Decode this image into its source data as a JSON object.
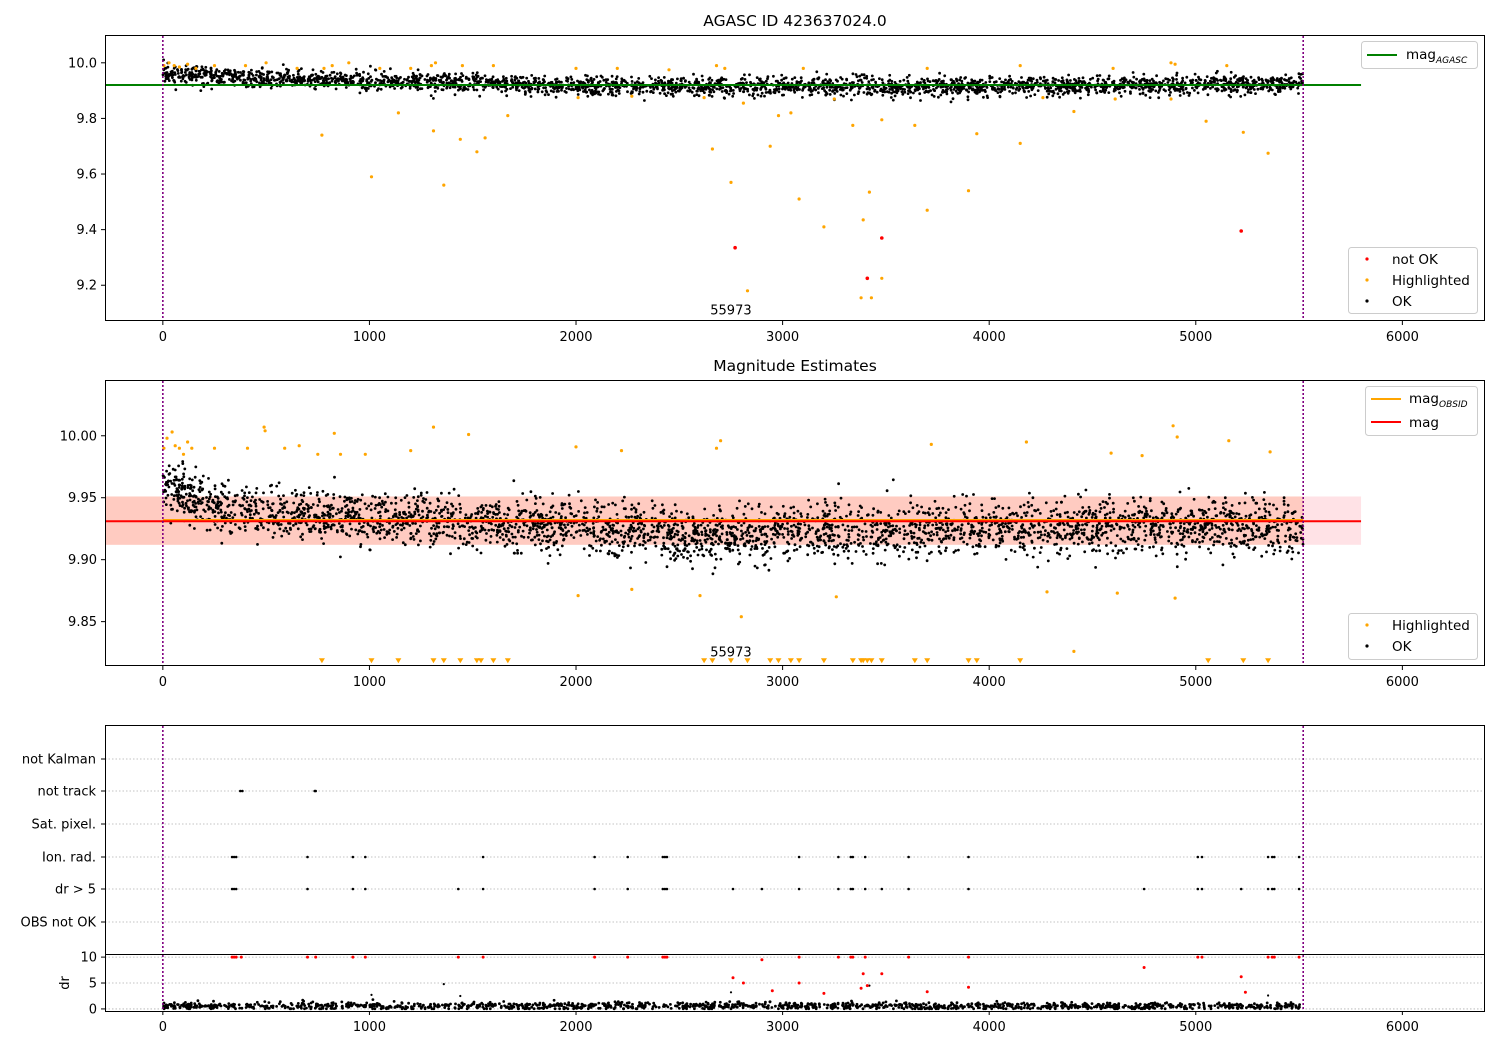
{
  "chart_data": [
    {
      "type": "scatter",
      "title": "AGASC ID 423637024.0",
      "xlim": [
        -280,
        6400
      ],
      "ylim": [
        9.075,
        10.1
      ],
      "x_ticks": [
        0,
        1000,
        2000,
        3000,
        4000,
        5000,
        6000
      ],
      "y_ticks": [
        9.2,
        9.4,
        9.6,
        9.8,
        10.0
      ],
      "y_tick_labels": [
        "9.2",
        "9.4",
        "9.6",
        "9.8",
        "10.0"
      ],
      "vlines": [
        0,
        5520
      ],
      "hline": {
        "y": 9.92,
        "x_end": 5800,
        "color": "#008000"
      },
      "annotation": {
        "text": "55973",
        "x": 2750,
        "y": 9.095
      },
      "legend_top": [
        {
          "label": "mag",
          "sub": "AGASC",
          "color": "#008000"
        }
      ],
      "legend_bottom": [
        {
          "label": "not OK",
          "color": "#ff0000"
        },
        {
          "label": "Highlighted",
          "color": "#ffa500"
        },
        {
          "label": "OK",
          "color": "#000000"
        }
      ],
      "series": [
        {
          "name": "OK",
          "color": "#000000",
          "x_range": [
            0,
            5520
          ],
          "n": 2800,
          "band_segments": [
            [
              0,
              9.965
            ],
            [
              400,
              9.945
            ],
            [
              1000,
              9.935
            ],
            [
              2000,
              9.915
            ],
            [
              3000,
              9.915
            ],
            [
              4000,
              9.915
            ],
            [
              5000,
              9.92
            ],
            [
              5520,
              9.925
            ]
          ],
          "spread": 0.028
        },
        {
          "name": "Highlighted",
          "color": "#ffa500",
          "points": [
            [
              5,
              9.99
            ],
            [
              30,
              10.0
            ],
            [
              55,
              9.99
            ],
            [
              80,
              9.985
            ],
            [
              120,
              9.995
            ],
            [
              160,
              9.98
            ],
            [
              250,
              9.99
            ],
            [
              400,
              9.99
            ],
            [
              500,
              10.0
            ],
            [
              650,
              9.98
            ],
            [
              780,
              9.98
            ],
            [
              820,
              9.99
            ],
            [
              900,
              10.0
            ],
            [
              1050,
              9.98
            ],
            [
              1200,
              9.98
            ],
            [
              1300,
              9.99
            ],
            [
              1320,
              10.0
            ],
            [
              1450,
              9.99
            ],
            [
              1600,
              9.99
            ],
            [
              2000,
              9.98
            ],
            [
              2200,
              9.98
            ],
            [
              2450,
              9.975
            ],
            [
              2680,
              9.99
            ],
            [
              2720,
              9.98
            ],
            [
              3100,
              9.98
            ],
            [
              3700,
              9.98
            ],
            [
              4150,
              9.99
            ],
            [
              4600,
              9.98
            ],
            [
              4880,
              10.0
            ],
            [
              4900,
              9.995
            ],
            [
              5150,
              9.99
            ],
            [
              770,
              9.74
            ],
            [
              1010,
              9.59
            ],
            [
              1140,
              9.82
            ],
            [
              1310,
              9.755
            ],
            [
              1360,
              9.56
            ],
            [
              1440,
              9.725
            ],
            [
              1520,
              9.68
            ],
            [
              1560,
              9.73
            ],
            [
              1670,
              9.81
            ],
            [
              2010,
              9.875
            ],
            [
              2270,
              9.88
            ],
            [
              2620,
              9.875
            ],
            [
              2660,
              9.69
            ],
            [
              2750,
              9.57
            ],
            [
              2810,
              9.855
            ],
            [
              2830,
              9.18
            ],
            [
              2940,
              9.7
            ],
            [
              2980,
              9.81
            ],
            [
              3040,
              9.82
            ],
            [
              3080,
              9.51
            ],
            [
              3200,
              9.41
            ],
            [
              3250,
              9.87
            ],
            [
              3340,
              9.775
            ],
            [
              3380,
              9.155
            ],
            [
              3390,
              9.435
            ],
            [
              3420,
              9.535
            ],
            [
              3430,
              9.155
            ],
            [
              3480,
              9.225
            ],
            [
              3480,
              9.795
            ],
            [
              3640,
              9.775
            ],
            [
              3700,
              9.47
            ],
            [
              3900,
              9.54
            ],
            [
              3940,
              9.745
            ],
            [
              4150,
              9.71
            ],
            [
              4260,
              9.875
            ],
            [
              4410,
              9.825
            ],
            [
              4610,
              9.87
            ],
            [
              4880,
              9.87
            ],
            [
              5050,
              9.79
            ],
            [
              5230,
              9.75
            ],
            [
              5350,
              9.675
            ]
          ]
        },
        {
          "name": "not OK",
          "color": "#ff0000",
          "points": [
            [
              2770,
              9.335
            ],
            [
              3410,
              9.225
            ],
            [
              3480,
              9.37
            ],
            [
              5220,
              9.395
            ]
          ]
        }
      ]
    },
    {
      "type": "scatter",
      "title": "Magnitude Estimates",
      "xlim": [
        -280,
        6400
      ],
      "ylim": [
        9.815,
        10.045
      ],
      "x_ticks": [
        0,
        1000,
        2000,
        3000,
        4000,
        5000,
        6000
      ],
      "y_ticks": [
        9.85,
        9.9,
        9.95,
        10.0
      ],
      "y_tick_labels": [
        "9.85",
        "9.90",
        "9.95",
        "10.00"
      ],
      "vlines": [
        0,
        5520
      ],
      "band_obsid": {
        "x_end": 5520,
        "y_low": 9.912,
        "y_high": 9.951,
        "color": "#ffa07a"
      },
      "band_mag": {
        "x_end": 5800,
        "y_low": 9.912,
        "y_high": 9.951,
        "color": "#ffb6c1"
      },
      "hline": {
        "y": 9.931,
        "x_end": 5800,
        "color": "#ff0000"
      },
      "hline_obsid": {
        "y": 9.932,
        "x_end": 5520,
        "color": "#ffa500"
      },
      "annotation": {
        "text": "55973",
        "x": 2750,
        "y": 9.822
      },
      "legend_top": [
        {
          "label": "mag",
          "sub": "OBSID",
          "color": "#ffa500"
        },
        {
          "label": "mag",
          "sub": "",
          "color": "#ff0000"
        }
      ],
      "legend_bottom": [
        {
          "label": "Highlighted",
          "color": "#ffa500"
        },
        {
          "label": "OK",
          "color": "#000000"
        }
      ],
      "series": [
        {
          "name": "OK",
          "color": "#000000",
          "x_range": [
            0,
            5520
          ],
          "n": 3200,
          "band_segments": [
            [
              0,
              9.96
            ],
            [
              300,
              9.94
            ],
            [
              1000,
              9.935
            ],
            [
              2000,
              9.925
            ],
            [
              2600,
              9.918
            ],
            [
              3000,
              9.922
            ],
            [
              4000,
              9.925
            ],
            [
              5000,
              9.928
            ],
            [
              5520,
              9.925
            ]
          ],
          "spread": 0.018
        },
        {
          "name": "Highlighted",
          "color": "#ffa500",
          "points": [
            [
              5,
              9.99
            ],
            [
              20,
              9.998
            ],
            [
              45,
              10.003
            ],
            [
              60,
              9.992
            ],
            [
              80,
              9.99
            ],
            [
              100,
              9.985
            ],
            [
              120,
              9.995
            ],
            [
              140,
              9.99
            ],
            [
              250,
              9.99
            ],
            [
              410,
              9.99
            ],
            [
              490,
              10.007
            ],
            [
              495,
              10.004
            ],
            [
              590,
              9.99
            ],
            [
              660,
              9.992
            ],
            [
              750,
              9.985
            ],
            [
              830,
              10.002
            ],
            [
              860,
              9.985
            ],
            [
              980,
              9.985
            ],
            [
              1200,
              9.988
            ],
            [
              1310,
              10.007
            ],
            [
              1480,
              10.001
            ],
            [
              2000,
              9.991
            ],
            [
              2010,
              9.871
            ],
            [
              2220,
              9.988
            ],
            [
              2270,
              9.876
            ],
            [
              2600,
              9.871
            ],
            [
              2680,
              9.99
            ],
            [
              2700,
              9.996
            ],
            [
              2800,
              9.854
            ],
            [
              3260,
              9.87
            ],
            [
              3720,
              9.993
            ],
            [
              4180,
              9.995
            ],
            [
              4280,
              9.874
            ],
            [
              4410,
              9.826
            ],
            [
              4590,
              9.986
            ],
            [
              4620,
              9.873
            ],
            [
              4740,
              9.984
            ],
            [
              4890,
              10.008
            ],
            [
              4900,
              9.869
            ],
            [
              4910,
              9.999
            ],
            [
              5160,
              9.996
            ],
            [
              5360,
              9.987
            ]
          ]
        },
        {
          "name": "Highlighted-low",
          "color": "#ffa500",
          "marker": "triangle-down",
          "y": 9.818,
          "x": [
            770,
            1010,
            1140,
            1310,
            1360,
            1440,
            1520,
            1540,
            1600,
            1670,
            2620,
            2660,
            2750,
            2830,
            2940,
            2980,
            3040,
            3080,
            3200,
            3340,
            3380,
            3390,
            3410,
            3430,
            3480,
            3640,
            3700,
            3900,
            3940,
            4150,
            5060,
            5230,
            5350
          ]
        }
      ]
    },
    {
      "type": "scatter",
      "title": "",
      "xlim": [
        -280,
        6400
      ],
      "categories": [
        "not Kalman",
        "not track",
        "Sat. pixel.",
        "Ion. rad.",
        "dr > 5",
        "OBS not OK"
      ],
      "flag_points": {
        "not track": [
          375,
          385,
          735,
          740
        ],
        "Ion. rad.": [
          335,
          345,
          355,
          700,
          920,
          980,
          1550,
          2090,
          2250,
          2420,
          2430,
          2440,
          3080,
          3270,
          3330,
          3340,
          3400,
          3610,
          3900,
          5010,
          5030,
          5350,
          5370,
          5380,
          5500
        ],
        "dr > 5": [
          335,
          345,
          355,
          700,
          920,
          980,
          1430,
          1550,
          2090,
          2250,
          2420,
          2430,
          2440,
          2760,
          2900,
          3080,
          3270,
          3330,
          3340,
          3400,
          3480,
          3610,
          3900,
          4750,
          5010,
          5030,
          5220,
          5350,
          5370,
          5380,
          5500
        ]
      },
      "vlines": [
        0,
        5520
      ]
    },
    {
      "type": "scatter",
      "title": "",
      "ylabel": "dr",
      "xlim": [
        -280,
        6400
      ],
      "ylim": [
        -0.4,
        10.6
      ],
      "x_ticks": [
        0,
        1000,
        2000,
        3000,
        4000,
        5000,
        6000
      ],
      "y_ticks": [
        0,
        5,
        10
      ],
      "vlines": [
        0,
        5520
      ],
      "series": [
        {
          "name": "dr-ok",
          "color": "#000000",
          "x_range": [
            0,
            5520
          ],
          "n": 1400,
          "mean": 0.55,
          "spread": 0.35
        },
        {
          "name": "dr-bad",
          "color": "#ff0000",
          "points": [
            [
              335,
              10
            ],
            [
              345,
              10
            ],
            [
              355,
              10
            ],
            [
              380,
              10
            ],
            [
              700,
              10
            ],
            [
              740,
              10
            ],
            [
              920,
              10
            ],
            [
              980,
              10
            ],
            [
              1430,
              10
            ],
            [
              1550,
              10
            ],
            [
              2090,
              10
            ],
            [
              2250,
              10
            ],
            [
              2420,
              10
            ],
            [
              2430,
              10
            ],
            [
              2440,
              10
            ],
            [
              3080,
              10
            ],
            [
              3270,
              10
            ],
            [
              3330,
              10
            ],
            [
              3340,
              10
            ],
            [
              3400,
              10
            ],
            [
              3610,
              10
            ],
            [
              3900,
              10
            ],
            [
              5010,
              10
            ],
            [
              5030,
              10
            ],
            [
              5350,
              10
            ],
            [
              5370,
              10
            ],
            [
              5380,
              10
            ],
            [
              5500,
              10
            ],
            [
              2760,
              6
            ],
            [
              2810,
              5
            ],
            [
              2900,
              9.5
            ],
            [
              2950,
              3.5
            ],
            [
              3080,
              5
            ],
            [
              3200,
              3
            ],
            [
              3380,
              4
            ],
            [
              3390,
              6.8
            ],
            [
              3410,
              4.5
            ],
            [
              3480,
              6.8
            ],
            [
              3700,
              3.3
            ],
            [
              3900,
              4.2
            ],
            [
              4750,
              8
            ],
            [
              5220,
              6.2
            ],
            [
              5240,
              3.2
            ]
          ]
        },
        {
          "name": "dr-mid",
          "color": "#000000",
          "points": [
            [
              1010,
              2.7
            ],
            [
              1360,
              4.8
            ],
            [
              1440,
              2.5
            ],
            [
              2750,
              3.2
            ],
            [
              3420,
              4.5
            ],
            [
              5350,
              2.6
            ]
          ]
        }
      ]
    }
  ]
}
